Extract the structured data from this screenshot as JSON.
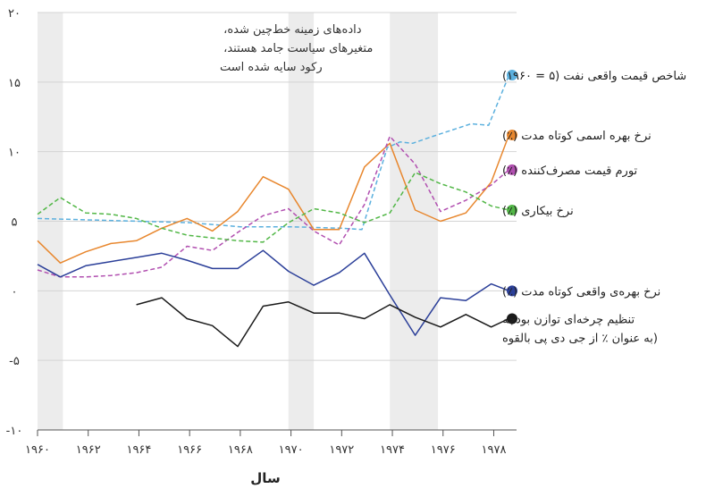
{
  "chart_data": {
    "type": "line",
    "title": "",
    "xlabel": "سال",
    "ylabel": "",
    "xlim": [
      1960,
      1978.9
    ],
    "ylim": [
      -10,
      20
    ],
    "y_ticks": [
      20,
      15,
      10,
      5,
      0,
      -5,
      -10
    ],
    "y_tick_labels": [
      "۲۰",
      "۱۵",
      "۱۰",
      "۵",
      "۰",
      "-۵",
      "-۱۰"
    ],
    "x_ticks": [
      1960,
      1962,
      1964,
      1966,
      1968,
      1970,
      1972,
      1974,
      1976,
      1978
    ],
    "x_tick_labels": [
      "۱۹۶۰",
      "۱۹۶۲",
      "۱۹۶۴",
      "۱۹۶۶",
      "۱۹۶۸",
      "۱۹۷۰",
      "۱۹۷۲",
      "۱۹۷۴",
      "۱۹۷۶",
      "۱۹۷۸"
    ],
    "recessions": [
      [
        1960,
        1961
      ],
      [
        1969.9,
        1970.9
      ],
      [
        1973.9,
        1975.8
      ]
    ],
    "grid": true,
    "note": [
      "داده‌های زمینه خط‌چین شده،",
      "متغیرهای سیاست جامد هستند،",
      "رکود سایه شده است"
    ],
    "series": [
      {
        "name": "شاخص قیمت واقعی  نفت (۵ = ۱۹۶۰)",
        "color": "#5bb0de",
        "dashed": true,
        "marker": true,
        "x": [
          1960,
          1966,
          1968,
          1970,
          1972,
          1972.8,
          1973.8,
          1974.3,
          1974.8,
          1975.6,
          1977.1,
          1977.8,
          1978.6
        ],
        "values": [
          5.2,
          4.9,
          4.6,
          4.6,
          4.5,
          4.4,
          10.3,
          10.7,
          10.6,
          11.1,
          12,
          11.9,
          15.5
        ]
      },
      {
        "name": "نرخ بهره اسمی کوتاه مدت (٪)",
        "color": "#e8872e",
        "dashed": false,
        "marker": true,
        "x": [
          1960,
          1960.9,
          1961.9,
          1962.9,
          1963.9,
          1964.9,
          1965.9,
          1966.9,
          1967.9,
          1968.9,
          1969.9,
          1970.9,
          1971.9,
          1972.9,
          1973.9,
          1974.9,
          1975.9,
          1976.9,
          1977.9,
          1978.6
        ],
        "values": [
          3.6,
          2.0,
          2.8,
          3.4,
          3.6,
          4.5,
          5.2,
          4.3,
          5.7,
          8.2,
          7.3,
          4.4,
          4.4,
          8.9,
          10.6,
          5.8,
          5.0,
          5.6,
          7.8,
          11.2
        ]
      },
      {
        "name": "تورم قیمت مصرف‌کننده (٪)",
        "color": "#b14fb0",
        "dashed": true,
        "marker": true,
        "x": [
          1960,
          1960.9,
          1961.9,
          1962.9,
          1963.9,
          1964.9,
          1965.9,
          1966.9,
          1967.9,
          1968.9,
          1969.9,
          1970.9,
          1971.9,
          1972.9,
          1973.9,
          1974.9,
          1975.9,
          1976.9,
          1977.9,
          1978.6
        ],
        "values": [
          1.5,
          1.0,
          1.0,
          1.1,
          1.3,
          1.7,
          3.2,
          2.9,
          4.2,
          5.4,
          5.9,
          4.3,
          3.3,
          6.2,
          11.1,
          9.1,
          5.7,
          6.5,
          7.6,
          8.7
        ]
      },
      {
        "name": "نرخ بیکاری (٪)",
        "color": "#52b747",
        "dashed": true,
        "marker": true,
        "x": [
          1960,
          1960.9,
          1961.9,
          1962.9,
          1963.9,
          1964.9,
          1965.9,
          1966.9,
          1967.9,
          1968.9,
          1969.9,
          1970.9,
          1971.9,
          1972.9,
          1973.9,
          1974.9,
          1975.9,
          1976.9,
          1977.9,
          1978.6
        ],
        "values": [
          5.5,
          6.7,
          5.6,
          5.5,
          5.2,
          4.5,
          4.0,
          3.8,
          3.6,
          3.5,
          4.9,
          5.9,
          5.6,
          4.9,
          5.6,
          8.5,
          7.7,
          7.1,
          6.1,
          5.8
        ]
      },
      {
        "name": "نرخ بهره‌ی واقعی کوتاه مدت (٪)",
        "color": "#2b3f99",
        "dashed": false,
        "marker": true,
        "x": [
          1960,
          1960.9,
          1961.9,
          1962.9,
          1963.9,
          1964.9,
          1965.9,
          1966.9,
          1967.9,
          1968.9,
          1969.9,
          1970.9,
          1971.9,
          1972.9,
          1973.9,
          1974.9,
          1975.9,
          1976.9,
          1977.9,
          1978.6
        ],
        "values": [
          1.9,
          1.0,
          1.8,
          2.1,
          2.4,
          2.7,
          2.2,
          1.6,
          1.6,
          2.9,
          1.4,
          0.4,
          1.3,
          2.7,
          -0.3,
          -3.2,
          -0.5,
          -0.7,
          0.5,
          0.0
        ]
      },
      {
        "name_lines": [
          "تنظیم چرخه‌ای توازن بودجه",
          "(به عنوان ٪ از جی دی پی بالقوه"
        ],
        "color": "#1a1a1a",
        "dashed": false,
        "marker": true,
        "x": [
          1963.9,
          1964.9,
          1965.9,
          1966.9,
          1967.9,
          1968.9,
          1969.9,
          1970.9,
          1971.9,
          1972.9,
          1973.9,
          1974.9,
          1975.9,
          1976.9,
          1977.9,
          1978.6
        ],
        "values": [
          -1.0,
          -0.5,
          -2.0,
          -2.5,
          -4.0,
          -1.1,
          -0.8,
          -1.6,
          -1.6,
          -2.0,
          -1.0,
          -1.9,
          -2.6,
          -1.7,
          -2.6,
          -2.0
        ]
      }
    ]
  }
}
